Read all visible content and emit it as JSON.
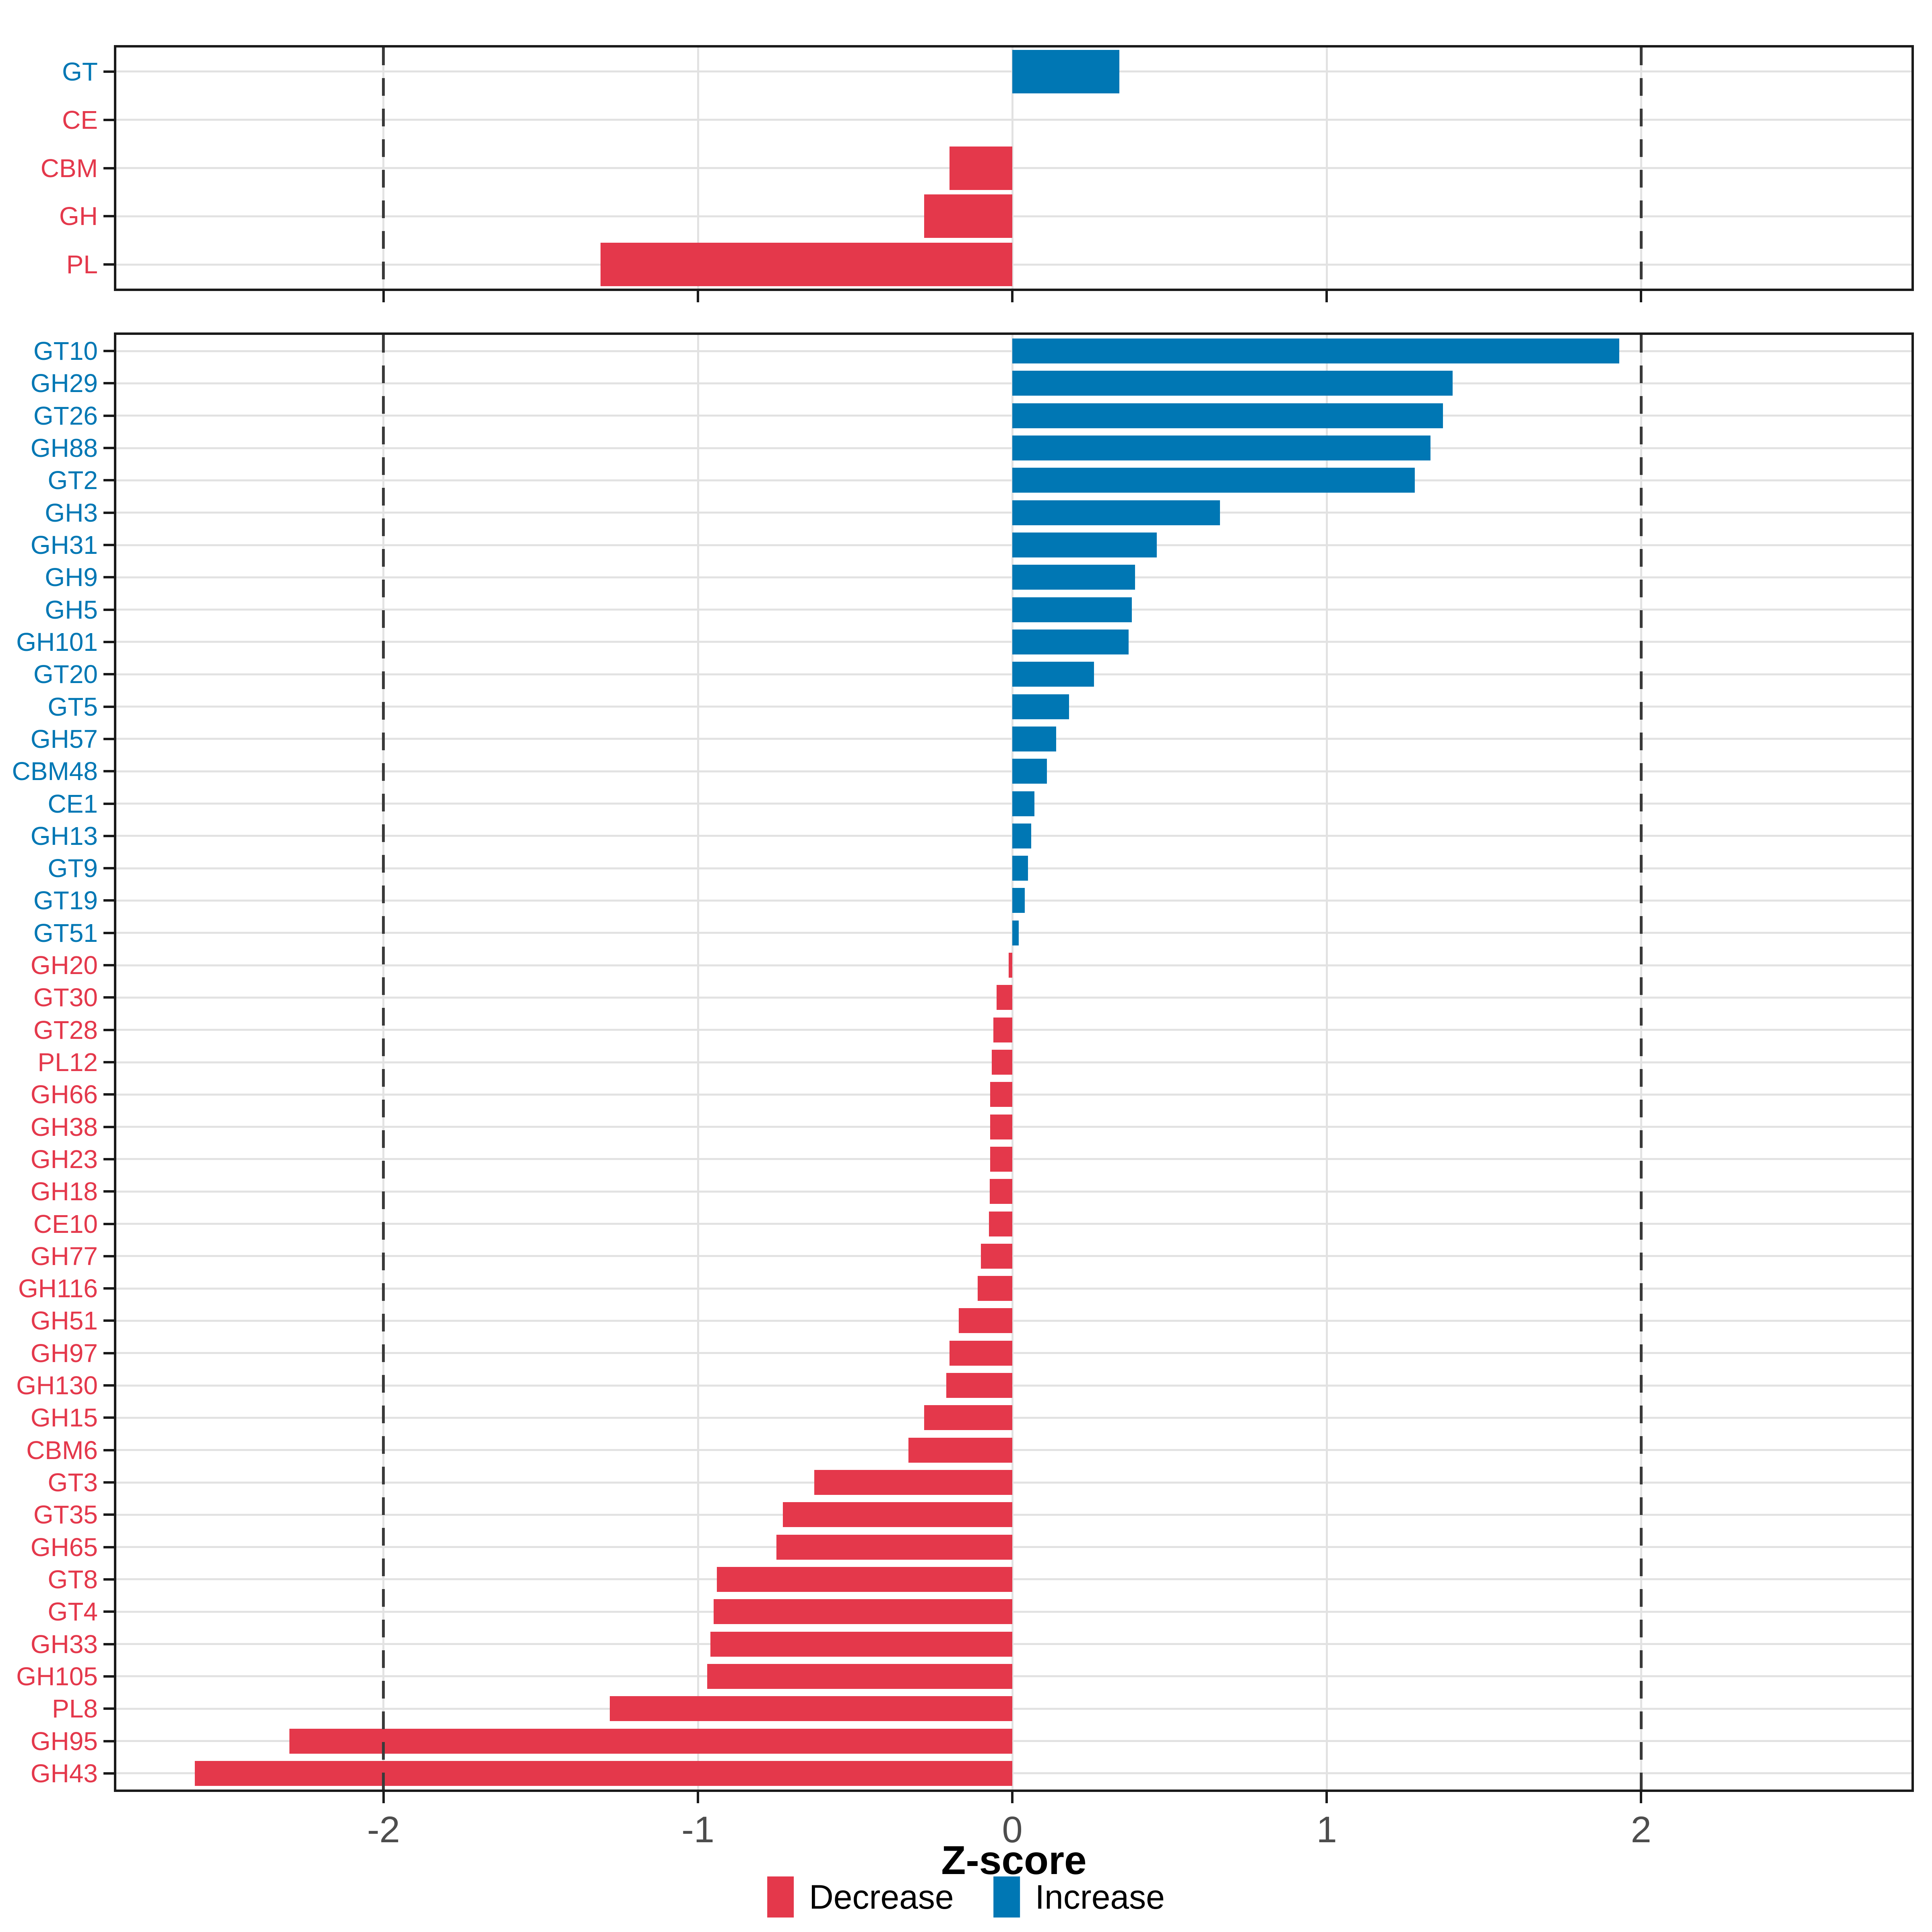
{
  "figure": {
    "description": "Two-panel horizontal bar chart of CAZyme Z-scores"
  },
  "axis": {
    "label": "Z-score",
    "ticks": [
      -2,
      -1,
      0,
      1,
      2
    ],
    "tick_labels": [
      "-2",
      "-1",
      "0",
      "1",
      "2"
    ],
    "dashed_reflines": [
      -2,
      2
    ],
    "xmin": -2.85,
    "xmax": 2.86
  },
  "colors": {
    "increase": "#0077b4",
    "decrease": "#e4384b",
    "grid": "#e2e2e2",
    "dashed_line": "#3a3a3a",
    "tick_text": "#4d4d4d",
    "panel_border": "#1a1a1a"
  },
  "legend": {
    "items": [
      {
        "label": "Decrease",
        "direction": "decrease"
      },
      {
        "label": "Increase",
        "direction": "increase"
      }
    ]
  },
  "chart_data": [
    {
      "id": "cazyme-class-panel",
      "type": "bar",
      "orientation": "horizontal",
      "xlabel": "Z-score",
      "xlim": [
        -2.85,
        2.86
      ],
      "grid": true,
      "items": [
        {
          "label": "GT",
          "value": 0.34,
          "direction": "increase"
        },
        {
          "label": "CE",
          "value": 0.0,
          "direction": "decrease"
        },
        {
          "label": "CBM",
          "value": -0.2,
          "direction": "decrease"
        },
        {
          "label": "GH",
          "value": -0.28,
          "direction": "decrease"
        },
        {
          "label": "PL",
          "value": -1.31,
          "direction": "decrease"
        }
      ]
    },
    {
      "id": "cazyme-family-panel",
      "type": "bar",
      "orientation": "horizontal",
      "xlabel": "Z-score",
      "xlim": [
        -2.85,
        2.86
      ],
      "grid": true,
      "items": [
        {
          "label": "GT10",
          "value": 1.93,
          "direction": "increase"
        },
        {
          "label": "GH29",
          "value": 1.4,
          "direction": "increase"
        },
        {
          "label": "GT26",
          "value": 1.37,
          "direction": "increase"
        },
        {
          "label": "GH88",
          "value": 1.33,
          "direction": "increase"
        },
        {
          "label": "GT2",
          "value": 1.28,
          "direction": "increase"
        },
        {
          "label": "GH3",
          "value": 0.66,
          "direction": "increase"
        },
        {
          "label": "GH31",
          "value": 0.46,
          "direction": "increase"
        },
        {
          "label": "GH9",
          "value": 0.39,
          "direction": "increase"
        },
        {
          "label": "GH5",
          "value": 0.38,
          "direction": "increase"
        },
        {
          "label": "GH101",
          "value": 0.37,
          "direction": "increase"
        },
        {
          "label": "GT20",
          "value": 0.26,
          "direction": "increase"
        },
        {
          "label": "GT5",
          "value": 0.18,
          "direction": "increase"
        },
        {
          "label": "GH57",
          "value": 0.14,
          "direction": "increase"
        },
        {
          "label": "CBM48",
          "value": 0.11,
          "direction": "increase"
        },
        {
          "label": "CE1",
          "value": 0.07,
          "direction": "increase"
        },
        {
          "label": "GH13",
          "value": 0.06,
          "direction": "increase"
        },
        {
          "label": "GT9",
          "value": 0.05,
          "direction": "increase"
        },
        {
          "label": "GT19",
          "value": 0.04,
          "direction": "increase"
        },
        {
          "label": "GT51",
          "value": 0.02,
          "direction": "increase"
        },
        {
          "label": "GH20",
          "value": -0.012,
          "direction": "decrease"
        },
        {
          "label": "GT30",
          "value": -0.05,
          "direction": "decrease"
        },
        {
          "label": "GT28",
          "value": -0.06,
          "direction": "decrease"
        },
        {
          "label": "PL12",
          "value": -0.065,
          "direction": "decrease"
        },
        {
          "label": "GH66",
          "value": -0.07,
          "direction": "decrease"
        },
        {
          "label": "GH38",
          "value": -0.07,
          "direction": "decrease"
        },
        {
          "label": "GH23",
          "value": -0.07,
          "direction": "decrease"
        },
        {
          "label": "GH18",
          "value": -0.072,
          "direction": "decrease"
        },
        {
          "label": "CE10",
          "value": -0.075,
          "direction": "decrease"
        },
        {
          "label": "GH77",
          "value": -0.1,
          "direction": "decrease"
        },
        {
          "label": "GH116",
          "value": -0.11,
          "direction": "decrease"
        },
        {
          "label": "GH51",
          "value": -0.17,
          "direction": "decrease"
        },
        {
          "label": "GH97",
          "value": -0.2,
          "direction": "decrease"
        },
        {
          "label": "GH130",
          "value": -0.21,
          "direction": "decrease"
        },
        {
          "label": "GH15",
          "value": -0.28,
          "direction": "decrease"
        },
        {
          "label": "CBM6",
          "value": -0.33,
          "direction": "decrease"
        },
        {
          "label": "GT3",
          "value": -0.63,
          "direction": "decrease"
        },
        {
          "label": "GT35",
          "value": -0.73,
          "direction": "decrease"
        },
        {
          "label": "GH65",
          "value": -0.75,
          "direction": "decrease"
        },
        {
          "label": "GT8",
          "value": -0.94,
          "direction": "decrease"
        },
        {
          "label": "GT4",
          "value": -0.95,
          "direction": "decrease"
        },
        {
          "label": "GH33",
          "value": -0.96,
          "direction": "decrease"
        },
        {
          "label": "GH105",
          "value": -0.97,
          "direction": "decrease"
        },
        {
          "label": "PL8",
          "value": -1.28,
          "direction": "decrease"
        },
        {
          "label": "GH95",
          "value": -2.3,
          "direction": "decrease"
        },
        {
          "label": "GH43",
          "value": -2.6,
          "direction": "decrease"
        }
      ]
    }
  ]
}
